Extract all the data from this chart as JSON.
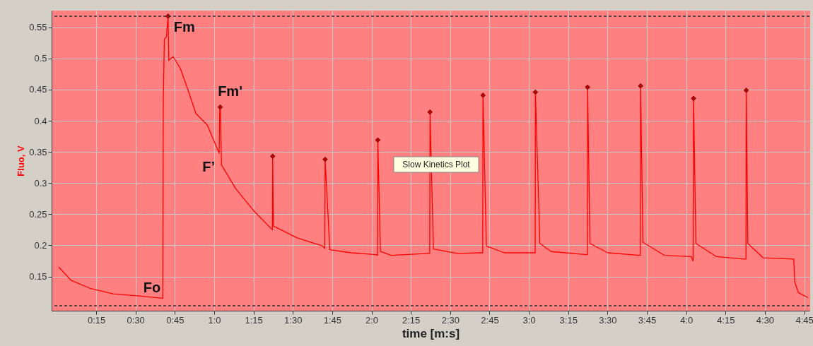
{
  "chart_data": {
    "type": "line",
    "xlabel": "time [m:s]",
    "ylabel": "Fluo, V",
    "xlim": [
      -2,
      287
    ],
    "ylim": [
      0.095,
      0.577
    ],
    "xticks": [
      {
        "value": 15,
        "label": "0:15"
      },
      {
        "value": 30,
        "label": "0:30"
      },
      {
        "value": 45,
        "label": "0:45"
      },
      {
        "value": 60,
        "label": "1:0"
      },
      {
        "value": 75,
        "label": "1:15"
      },
      {
        "value": 90,
        "label": "1:30"
      },
      {
        "value": 105,
        "label": "1:45"
      },
      {
        "value": 120,
        "label": "2:0"
      },
      {
        "value": 135,
        "label": "2:15"
      },
      {
        "value": 150,
        "label": "2:30"
      },
      {
        "value": 165,
        "label": "2:45"
      },
      {
        "value": 180,
        "label": "3:0"
      },
      {
        "value": 195,
        "label": "3:15"
      },
      {
        "value": 210,
        "label": "3:30"
      },
      {
        "value": 225,
        "label": "3:45"
      },
      {
        "value": 240,
        "label": "4:0"
      },
      {
        "value": 255,
        "label": "4:15"
      },
      {
        "value": 270,
        "label": "4:30"
      },
      {
        "value": 285,
        "label": "4:45"
      }
    ],
    "yticks": [
      0.15,
      0.2,
      0.25,
      0.3,
      0.35,
      0.4,
      0.45,
      0.5,
      0.55
    ],
    "grid": true,
    "series": [
      {
        "type": "line",
        "color": "#ff0000",
        "marker": "none",
        "line_style": "solid",
        "x": [
          0.7,
          5.4,
          12.6,
          21.5,
          30.5,
          40.4,
          40.6,
          41.0,
          41.8,
          42.4,
          42.7,
          44.4,
          47.1,
          50.3,
          53.0,
          57.4,
          61.9,
          62.1,
          62.3,
          62.8,
          68.2,
          75.4,
          81.7,
          82.2,
          82.3,
          82.6,
          91.6,
          101.4,
          102.2,
          102.3,
          104.1,
          112.2,
          121.7,
          122.3,
          122.4,
          123.4,
          127.5,
          141.8,
          142.2,
          142.3,
          143.6,
          152.6,
          162.0,
          162.4,
          162.5,
          163.8,
          170.6,
          182.1,
          182.4,
          182.5,
          184.2,
          188.5,
          202.0,
          202.3,
          202.4,
          203.3,
          210.1,
          222.2,
          222.5,
          222.6,
          223.5,
          231.6,
          241.9,
          242.6,
          242.8,
          243.7,
          251.4,
          262.1,
          262.8,
          262.9,
          263.5,
          269.3,
          281.0,
          281.4,
          282.8,
          286.4
        ],
        "values": [
          0.165,
          0.144,
          0.131,
          0.122,
          0.119,
          0.115,
          0.435,
          0.531,
          0.535,
          0.568,
          0.497,
          0.503,
          0.484,
          0.446,
          0.412,
          0.393,
          0.348,
          0.422,
          0.422,
          0.329,
          0.291,
          0.254,
          0.227,
          0.225,
          0.343,
          0.231,
          0.212,
          0.199,
          0.195,
          0.338,
          0.193,
          0.188,
          0.185,
          0.184,
          0.369,
          0.19,
          0.184,
          0.187,
          0.187,
          0.414,
          0.194,
          0.187,
          0.188,
          0.188,
          0.441,
          0.199,
          0.188,
          0.188,
          0.188,
          0.446,
          0.203,
          0.19,
          0.185,
          0.185,
          0.454,
          0.203,
          0.188,
          0.184,
          0.184,
          0.456,
          0.205,
          0.184,
          0.182,
          0.175,
          0.436,
          0.203,
          0.182,
          0.178,
          0.178,
          0.449,
          0.203,
          0.18,
          0.178,
          0.141,
          0.124,
          0.116
        ]
      },
      {
        "type": "scatter",
        "color": "#c00000",
        "marker": "diamond",
        "x": [
          42.4,
          62.3,
          82.3,
          102.3,
          122.4,
          142.3,
          162.5,
          182.5,
          202.4,
          222.6,
          242.8,
          262.9
        ],
        "values": [
          0.568,
          0.422,
          0.343,
          0.338,
          0.369,
          0.414,
          0.441,
          0.446,
          0.454,
          0.456,
          0.436,
          0.449
        ]
      }
    ],
    "ref_lines": [
      {
        "axis": "y",
        "value": 0.568,
        "color": "#333333",
        "line_style": "dashed"
      },
      {
        "axis": "y",
        "value": 0.103,
        "color": "#333333",
        "line_style": "dashed"
      }
    ],
    "annotations": [
      {
        "text": "Fm",
        "x": 42.4,
        "y": 0.568
      },
      {
        "text": "Fm'",
        "x": 62.3,
        "y": 0.422
      },
      {
        "text": "F’",
        "x": 61.9,
        "y": 0.348
      },
      {
        "text": "Fo",
        "x": 40.4,
        "y": 0.115
      },
      "Slow Kinetics Plot"
    ]
  }
}
